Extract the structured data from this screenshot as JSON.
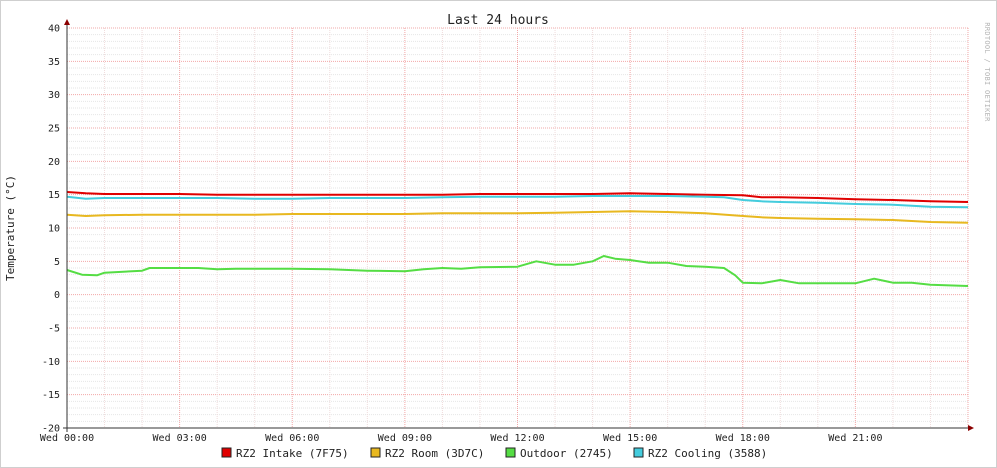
{
  "chart_data": {
    "type": "line",
    "title": "Last 24 hours",
    "ylabel": "Temperature (°C)",
    "xlabel": "",
    "watermark": "RRDTOOL / TOBI OETIKER",
    "ylim": [
      -20,
      40
    ],
    "yticks": [
      40,
      35,
      30,
      25,
      20,
      15,
      10,
      5,
      0,
      -5,
      -10,
      -15,
      -20
    ],
    "xlim": [
      0,
      24
    ],
    "x_ticks": [
      {
        "hour": 0,
        "label": "Wed 00:00"
      },
      {
        "hour": 3,
        "label": "Wed 03:00"
      },
      {
        "hour": 6,
        "label": "Wed 06:00"
      },
      {
        "hour": 9,
        "label": "Wed 09:00"
      },
      {
        "hour": 12,
        "label": "Wed 12:00"
      },
      {
        "hour": 15,
        "label": "Wed 15:00"
      },
      {
        "hour": 18,
        "label": "Wed 18:00"
      },
      {
        "hour": 21,
        "label": "Wed 21:00"
      }
    ],
    "grid": true,
    "legend_position": "bottom",
    "series": [
      {
        "name": "RZ2 Intake (7F75)",
        "color": "#e00000",
        "points": [
          [
            0,
            15.4
          ],
          [
            0.5,
            15.2
          ],
          [
            1,
            15.1
          ],
          [
            2,
            15.1
          ],
          [
            3,
            15.1
          ],
          [
            4,
            15.0
          ],
          [
            5,
            15.0
          ],
          [
            6,
            15.0
          ],
          [
            7,
            15.0
          ],
          [
            8,
            15.0
          ],
          [
            9,
            15.0
          ],
          [
            10,
            15.0
          ],
          [
            11,
            15.1
          ],
          [
            12,
            15.1
          ],
          [
            13,
            15.1
          ],
          [
            14,
            15.1
          ],
          [
            15,
            15.2
          ],
          [
            16,
            15.1
          ],
          [
            17,
            15.0
          ],
          [
            18,
            14.9
          ],
          [
            18.5,
            14.6
          ],
          [
            19,
            14.6
          ],
          [
            20,
            14.5
          ],
          [
            21,
            14.3
          ],
          [
            22,
            14.2
          ],
          [
            23,
            14.0
          ],
          [
            24,
            13.9
          ]
        ]
      },
      {
        "name": "RZ2 Room (3D7C)",
        "color": "#e8b820",
        "points": [
          [
            0,
            12.0
          ],
          [
            0.5,
            11.8
          ],
          [
            1,
            11.9
          ],
          [
            2,
            12.0
          ],
          [
            3,
            12.0
          ],
          [
            4,
            12.0
          ],
          [
            5,
            12.0
          ],
          [
            6,
            12.1
          ],
          [
            7,
            12.1
          ],
          [
            8,
            12.1
          ],
          [
            9,
            12.1
          ],
          [
            10,
            12.2
          ],
          [
            11,
            12.2
          ],
          [
            12,
            12.2
          ],
          [
            13,
            12.3
          ],
          [
            14,
            12.4
          ],
          [
            15,
            12.5
          ],
          [
            16,
            12.4
          ],
          [
            17,
            12.2
          ],
          [
            18,
            11.8
          ],
          [
            18.5,
            11.6
          ],
          [
            19,
            11.5
          ],
          [
            20,
            11.4
          ],
          [
            21,
            11.3
          ],
          [
            22,
            11.2
          ],
          [
            23,
            10.9
          ],
          [
            24,
            10.8
          ]
        ]
      },
      {
        "name": "Outdoor (2745)",
        "color": "#55dd44",
        "points": [
          [
            0,
            3.7
          ],
          [
            0.4,
            3.0
          ],
          [
            0.8,
            2.9
          ],
          [
            1,
            3.3
          ],
          [
            2,
            3.6
          ],
          [
            2.2,
            4.0
          ],
          [
            3,
            4.0
          ],
          [
            3.5,
            4.0
          ],
          [
            4,
            3.8
          ],
          [
            4.5,
            3.9
          ],
          [
            5,
            3.9
          ],
          [
            6,
            3.9
          ],
          [
            7,
            3.8
          ],
          [
            8,
            3.6
          ],
          [
            9,
            3.5
          ],
          [
            9.5,
            3.8
          ],
          [
            10,
            4.0
          ],
          [
            10.5,
            3.9
          ],
          [
            11,
            4.1
          ],
          [
            12,
            4.2
          ],
          [
            12.5,
            5.0
          ],
          [
            13,
            4.5
          ],
          [
            13.5,
            4.5
          ],
          [
            14,
            5.0
          ],
          [
            14.3,
            5.8
          ],
          [
            14.6,
            5.4
          ],
          [
            15,
            5.2
          ],
          [
            15.5,
            4.8
          ],
          [
            16,
            4.8
          ],
          [
            16.5,
            4.3
          ],
          [
            17,
            4.2
          ],
          [
            17.5,
            4.0
          ],
          [
            17.8,
            2.9
          ],
          [
            18,
            1.8
          ],
          [
            18.5,
            1.7
          ],
          [
            19,
            2.2
          ],
          [
            19.5,
            1.7
          ],
          [
            20,
            1.7
          ],
          [
            21,
            1.7
          ],
          [
            21.5,
            2.4
          ],
          [
            22,
            1.8
          ],
          [
            22.5,
            1.8
          ],
          [
            23,
            1.5
          ],
          [
            24,
            1.3
          ]
        ]
      },
      {
        "name": "RZ2 Cooling (3588)",
        "color": "#44ccdd",
        "points": [
          [
            0,
            14.7
          ],
          [
            0.5,
            14.4
          ],
          [
            1,
            14.5
          ],
          [
            2,
            14.5
          ],
          [
            3,
            14.5
          ],
          [
            4,
            14.5
          ],
          [
            5,
            14.4
          ],
          [
            6,
            14.4
          ],
          [
            7,
            14.5
          ],
          [
            8,
            14.5
          ],
          [
            9,
            14.5
          ],
          [
            10,
            14.6
          ],
          [
            11,
            14.7
          ],
          [
            12,
            14.7
          ],
          [
            13,
            14.7
          ],
          [
            14,
            14.8
          ],
          [
            15,
            14.8
          ],
          [
            16,
            14.8
          ],
          [
            17,
            14.7
          ],
          [
            17.5,
            14.6
          ],
          [
            18,
            14.2
          ],
          [
            18.5,
            14.0
          ],
          [
            19,
            13.9
          ],
          [
            20,
            13.8
          ],
          [
            21,
            13.6
          ],
          [
            22,
            13.5
          ],
          [
            23,
            13.2
          ],
          [
            24,
            13.1
          ]
        ]
      }
    ]
  }
}
